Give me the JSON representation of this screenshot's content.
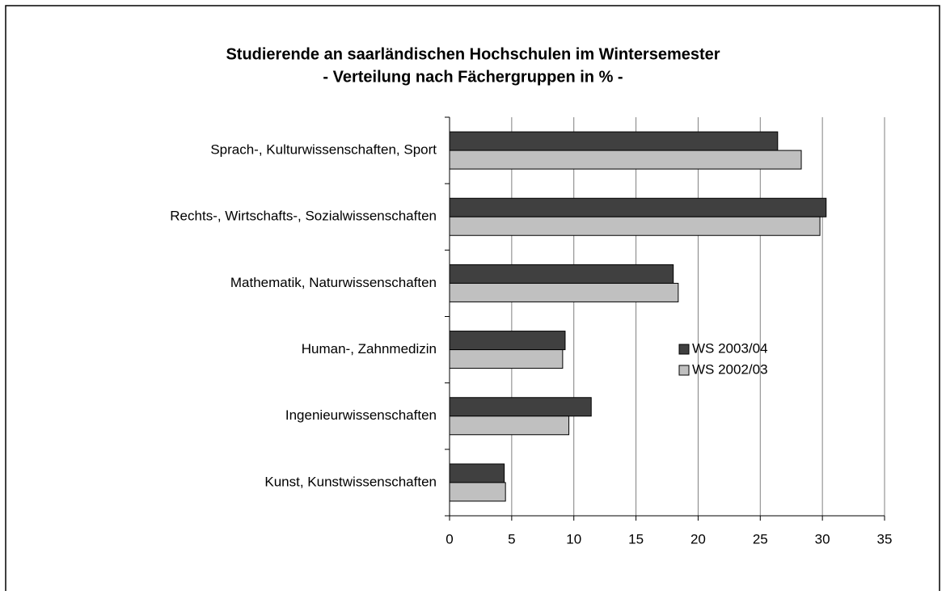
{
  "chart_data": {
    "type": "hbar",
    "title": "Studierende an saarländischen Hochschulen im Wintersemester",
    "subtitle": "- Verteilung nach Fächergruppen in % -",
    "categories": [
      "Sprach-, Kulturwissenschaften, Sport",
      "Rechts-, Wirtschafts-, Sozialwissenschaften",
      "Mathematik, Naturwissenschaften",
      "Human-, Zahnmedizin",
      "Ingenieurwissenschaften",
      "Kunst, Kunstwissenschaften"
    ],
    "series": [
      {
        "name": "WS 2003/04",
        "color": "#404040",
        "values": [
          26.4,
          30.3,
          18.0,
          9.3,
          11.4,
          4.4
        ]
      },
      {
        "name": "WS 2002/03",
        "color": "#c0c0c0",
        "values": [
          28.3,
          29.8,
          18.4,
          9.1,
          9.6,
          4.5
        ]
      }
    ],
    "xlim": [
      0,
      35
    ],
    "xticks": [
      0,
      5,
      10,
      15,
      20,
      25,
      30,
      35
    ],
    "grid": true
  }
}
